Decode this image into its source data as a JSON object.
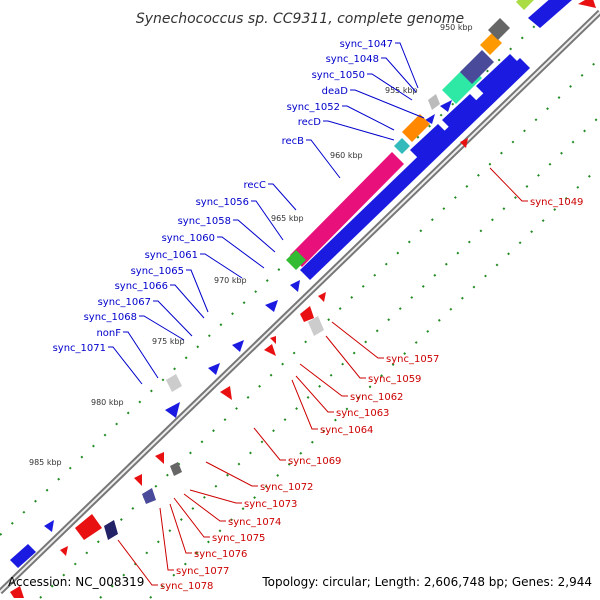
{
  "title": "Synechococcus sp. CC9311, complete genome",
  "footer": {
    "accession": "Accession: NC_008319",
    "topology": "Topology: circular; Length: 2,606,748 bp; Genes: 2,944"
  },
  "colors": {
    "forward_label": "#0000cc",
    "reverse_label": "#cc0000",
    "forward_gene": "#1010e8",
    "reverse_gene": "#e81010",
    "tick": "#228b22",
    "backbone": "#888888"
  },
  "scale_marks": [
    "950 kbp",
    "955 kbp",
    "960 kbp",
    "965 kbp",
    "970 kbp",
    "975 kbp",
    "980 kbp",
    "985 kbp"
  ],
  "forward_genes": [
    "sync_1047",
    "sync_1048",
    "sync_1050",
    "deaD",
    "sync_1052",
    "recD",
    "recB",
    "recC",
    "sync_1056",
    "sync_1058",
    "sync_1060",
    "sync_1061",
    "sync_1065",
    "sync_1066",
    "sync_1067",
    "sync_1068",
    "nonF",
    "sync_1071"
  ],
  "reverse_genes": [
    "sync_1049",
    "sync_1057",
    "sync_1059",
    "sync_1062",
    "sync_1063",
    "sync_1064",
    "sync_1069",
    "sync_1072",
    "sync_1073",
    "sync_1074",
    "sync_1075",
    "sync_1076",
    "sync_1077",
    "sync_1078"
  ]
}
